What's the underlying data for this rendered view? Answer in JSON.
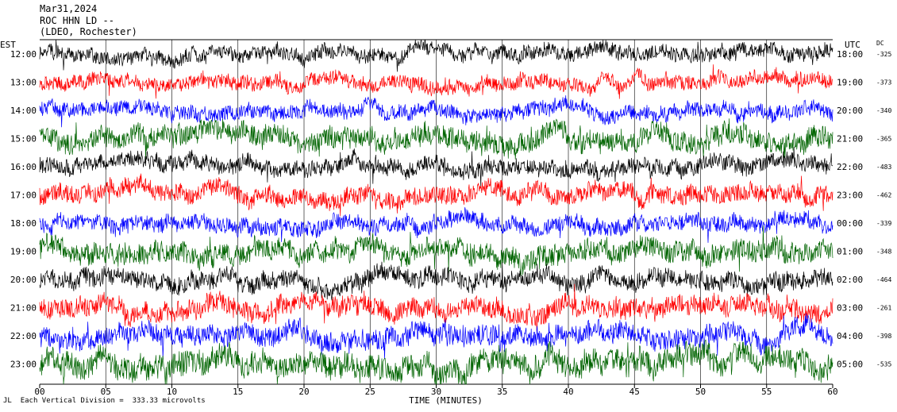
{
  "header": {
    "date": "Mar31,2024",
    "station": "ROC HHN LD --",
    "network": "(LDEO, Rochester)"
  },
  "chart_data": {
    "type": "line",
    "title": "",
    "left_axis_label": "EST",
    "right_axis_label": "UTC",
    "dc_label": "DC",
    "xlabel": "TIME (MINUTES)",
    "xlim": [
      0,
      60
    ],
    "x_ticks": [
      "00",
      "05",
      "10",
      "15",
      "20",
      "25",
      "30",
      "35",
      "40",
      "45",
      "50",
      "55",
      "60"
    ],
    "x_grid_minutes": [
      5,
      10,
      15,
      20,
      25,
      30,
      35,
      40,
      45,
      50,
      55
    ],
    "trace_colors": [
      "#000000",
      "#ff0000",
      "#0000ff",
      "#006400"
    ],
    "rows": [
      {
        "est": "12:00",
        "utc": "18:00",
        "dc": "-325",
        "amp": 0.45
      },
      {
        "est": "13:00",
        "utc": "19:00",
        "dc": "-373",
        "amp": 0.45
      },
      {
        "est": "14:00",
        "utc": "20:00",
        "dc": "-340",
        "amp": 0.45
      },
      {
        "est": "15:00",
        "utc": "21:00",
        "dc": "-365",
        "amp": 0.65
      },
      {
        "est": "16:00",
        "utc": "22:00",
        "dc": "-483",
        "amp": 0.5
      },
      {
        "est": "17:00",
        "utc": "23:00",
        "dc": "-462",
        "amp": 0.55
      },
      {
        "est": "18:00",
        "utc": "00:00",
        "dc": "-339",
        "amp": 0.5
      },
      {
        "est": "19:00",
        "utc": "01:00",
        "dc": "-348",
        "amp": 0.65
      },
      {
        "est": "20:00",
        "utc": "02:00",
        "dc": "-464",
        "amp": 0.55
      },
      {
        "est": "21:00",
        "utc": "03:00",
        "dc": "-261",
        "amp": 0.6
      },
      {
        "est": "22:00",
        "utc": "04:00",
        "dc": "-398",
        "amp": 0.6
      },
      {
        "est": "23:00",
        "utc": "05:00",
        "dc": "-535",
        "amp": 0.75
      }
    ],
    "scale_note": "Each Vertical Division =  333.33 microvolts",
    "corner_mark": "JL"
  }
}
